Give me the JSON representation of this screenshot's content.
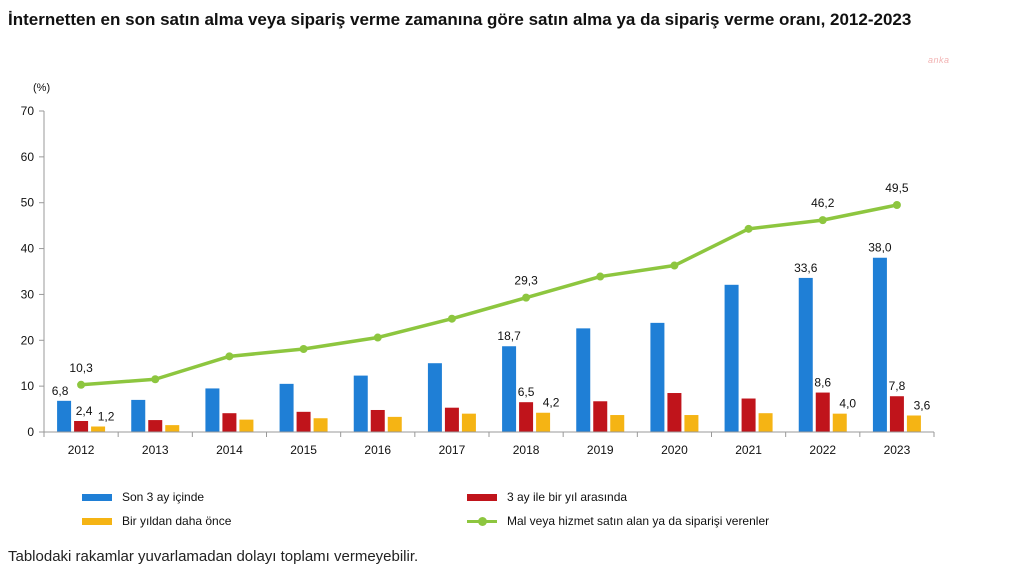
{
  "title": "İnternetten en son satın alma veya sipariş verme zamanına göre satın alma ya da sipariş verme oranı, 2012-2023",
  "watermark": "anka",
  "footnote": "Tablodaki rakamlar yuvarlamadan dolayı toplamı vermeyebilir.",
  "colors": {
    "series1": "#1f7fd6",
    "series2": "#c0141b",
    "series3": "#f5b414",
    "line": "#8dc63f",
    "axis": "#999999"
  },
  "chart_data": {
    "type": "bar",
    "title": "İnternetten en son satın alma veya sipariş verme zamanına göre satın alma ya da sipariş verme oranı, 2012-2023",
    "ylabel": "(%)",
    "xlabel": "",
    "ylim": [
      0,
      70
    ],
    "yticks": [
      "0",
      "10",
      "20",
      "30",
      "40",
      "50",
      "60",
      "70"
    ],
    "categories": [
      "2012",
      "2013",
      "2014",
      "2015",
      "2016",
      "2017",
      "2018",
      "2019",
      "2020",
      "2021",
      "2022",
      "2023"
    ],
    "grid": false,
    "legend_position": "bottom",
    "series": [
      {
        "name": "Son 3 ay içinde",
        "type": "bar",
        "values": [
          6.8,
          7.0,
          9.5,
          10.5,
          12.3,
          15.0,
          18.7,
          22.6,
          23.8,
          32.1,
          33.6,
          38.0
        ],
        "labels": [
          "6,8",
          null,
          null,
          null,
          null,
          null,
          "18,7",
          null,
          null,
          null,
          "33,6",
          "38,0"
        ]
      },
      {
        "name": "3 ay ile bir yıl arasında",
        "type": "bar",
        "values": [
          2.4,
          2.6,
          4.1,
          4.4,
          4.8,
          5.3,
          6.5,
          6.7,
          8.5,
          7.3,
          8.6,
          7.8
        ],
        "labels": [
          "2,4",
          null,
          null,
          null,
          null,
          null,
          "6,5",
          null,
          null,
          null,
          "8,6",
          "7,8"
        ]
      },
      {
        "name": "Bir yıldan daha önce",
        "type": "bar",
        "values": [
          1.2,
          1.5,
          2.7,
          3.0,
          3.3,
          4.0,
          4.2,
          3.7,
          3.7,
          4.1,
          4.0,
          3.6
        ],
        "labels": [
          "1,2",
          null,
          null,
          null,
          null,
          null,
          "4,2",
          null,
          null,
          null,
          "4,0",
          "3,6"
        ]
      },
      {
        "name": "Mal veya hizmet satın alan ya da siparişi verenler",
        "type": "line",
        "values": [
          10.3,
          11.5,
          16.5,
          18.1,
          20.6,
          24.7,
          29.3,
          33.9,
          36.3,
          44.3,
          46.2,
          49.5
        ],
        "labels": [
          "10,3",
          null,
          null,
          null,
          null,
          null,
          "29,3",
          null,
          null,
          null,
          "46,2",
          "49,5"
        ]
      }
    ]
  }
}
